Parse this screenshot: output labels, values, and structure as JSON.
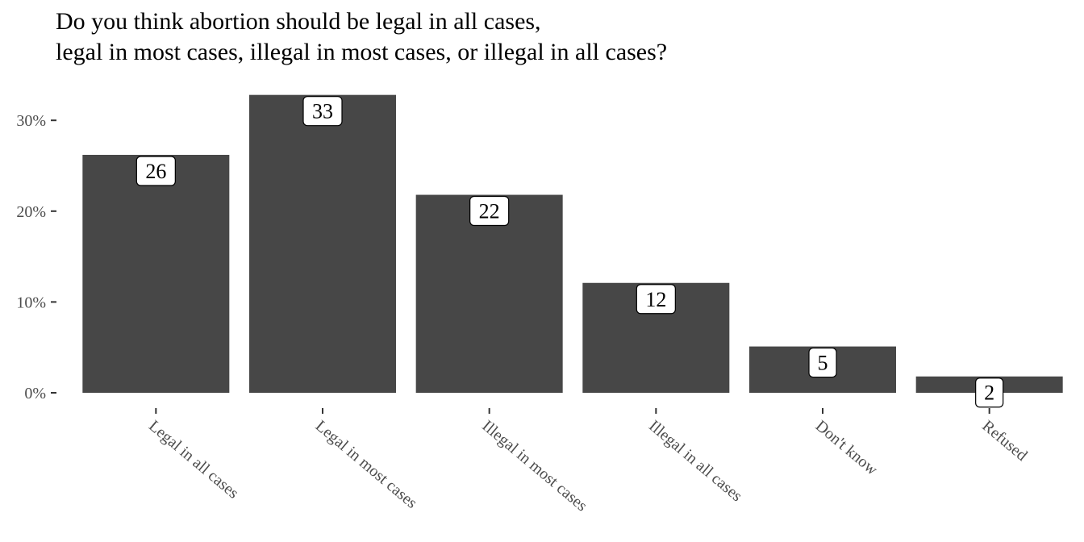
{
  "chart_data": {
    "type": "bar",
    "title_lines": [
      "Do you think abortion should be legal in all cases,",
      "legal in most cases, illegal in most cases, or illegal in all cases?"
    ],
    "xlabel": "",
    "ylabel": "",
    "categories": [
      "Legal in all cases",
      "Legal in most cases",
      "Illegal in most cases",
      "Illegal in all cases",
      "Don't know",
      "Refused"
    ],
    "values": [
      26.2,
      32.8,
      21.8,
      12.1,
      5.1,
      1.8
    ],
    "data_labels": [
      "26",
      "33",
      "22",
      "12",
      "5",
      "2"
    ],
    "ylim": [
      0,
      33.5
    ],
    "yticks": [
      0,
      10,
      20,
      30
    ],
    "ytick_labels": [
      "0%",
      "10%",
      "20%",
      "30%"
    ],
    "bar_color": "#474747",
    "grid": false,
    "legend": "none"
  }
}
